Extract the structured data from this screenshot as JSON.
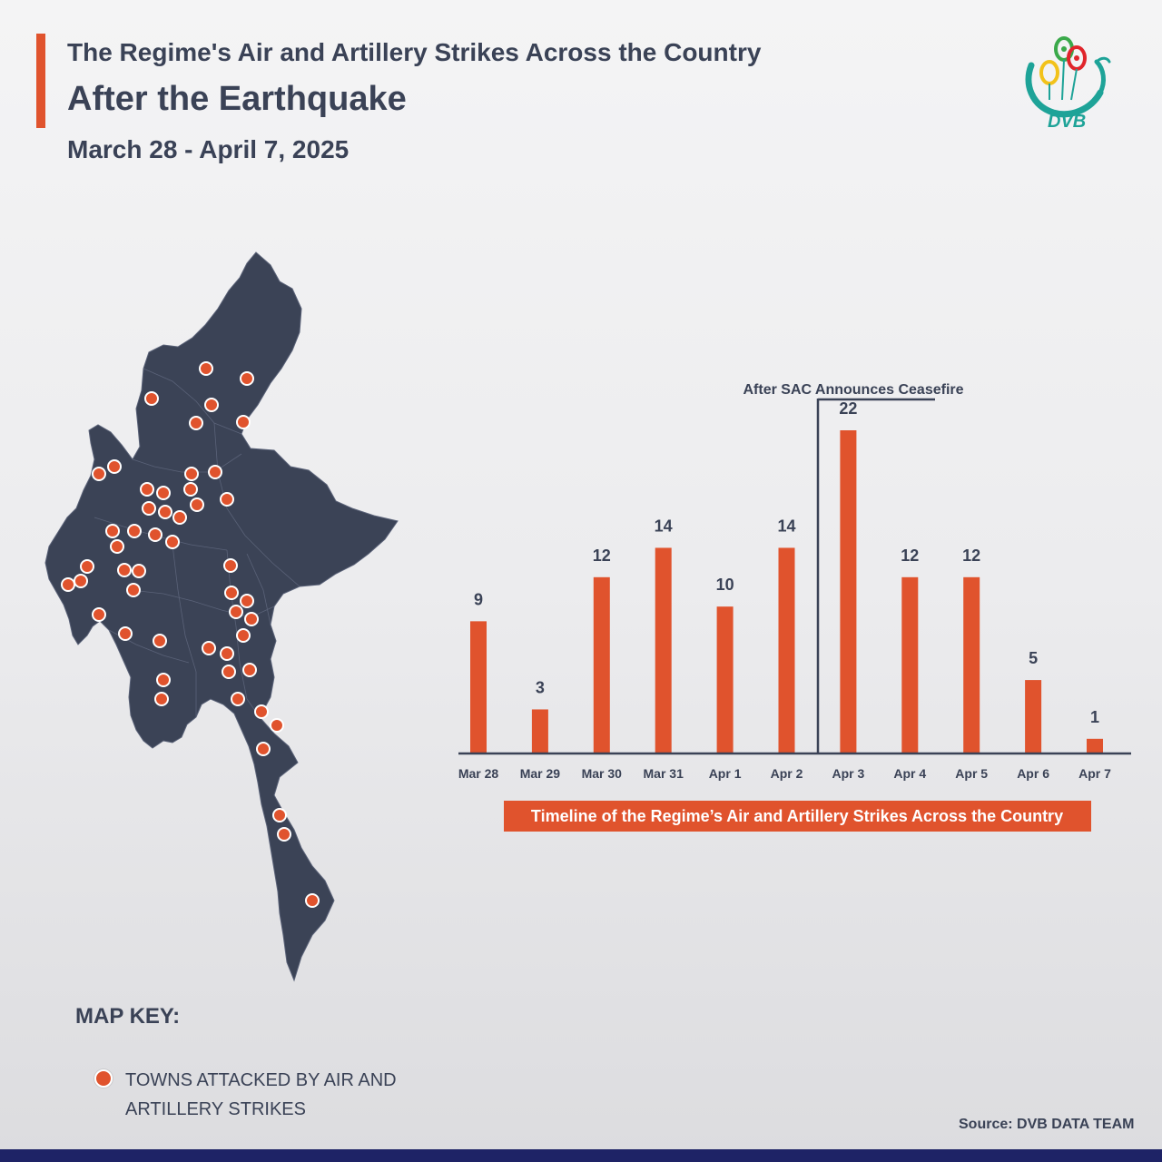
{
  "header": {
    "title_line1": "The Regime's Air and Artillery Strikes Across the Country",
    "title_line2": "After the Earthquake",
    "date_range": "March 28 - April 7, 2025"
  },
  "logo": {
    "icon": "dvb-logo-icon",
    "text": "DVB"
  },
  "chart_data": {
    "type": "bar",
    "title": "Timeline of the Regime’s Air and Artillery Strikes Across the Country",
    "categories": [
      "Mar 28",
      "Mar 29",
      "Mar 30",
      "Mar 31",
      "Apr 1",
      "Apr 2",
      "Apr 3",
      "Apr 4",
      "Apr 5",
      "Apr 6",
      "Apr 7"
    ],
    "values": [
      9,
      3,
      12,
      14,
      10,
      14,
      22,
      12,
      12,
      5,
      1
    ],
    "xlabel": "",
    "ylabel": "",
    "ylim": [
      0,
      22
    ],
    "grid": false,
    "bar_color": "#e0532d",
    "annotation": {
      "text": "After SAC Announces Ceasefire",
      "after_category": "Apr 2"
    }
  },
  "map_key": {
    "title": "MAP KEY:",
    "label": "TOWNS ATTACKED BY AIR AND ARTILLERY STRIKES",
    "marker_color": "#e0532d"
  },
  "source": "Source: DVB DATA TEAM",
  "colors": {
    "accent": "#e0532d",
    "map_fill": "#3b4356",
    "text": "#3a4256",
    "footer": "#1e2366"
  }
}
